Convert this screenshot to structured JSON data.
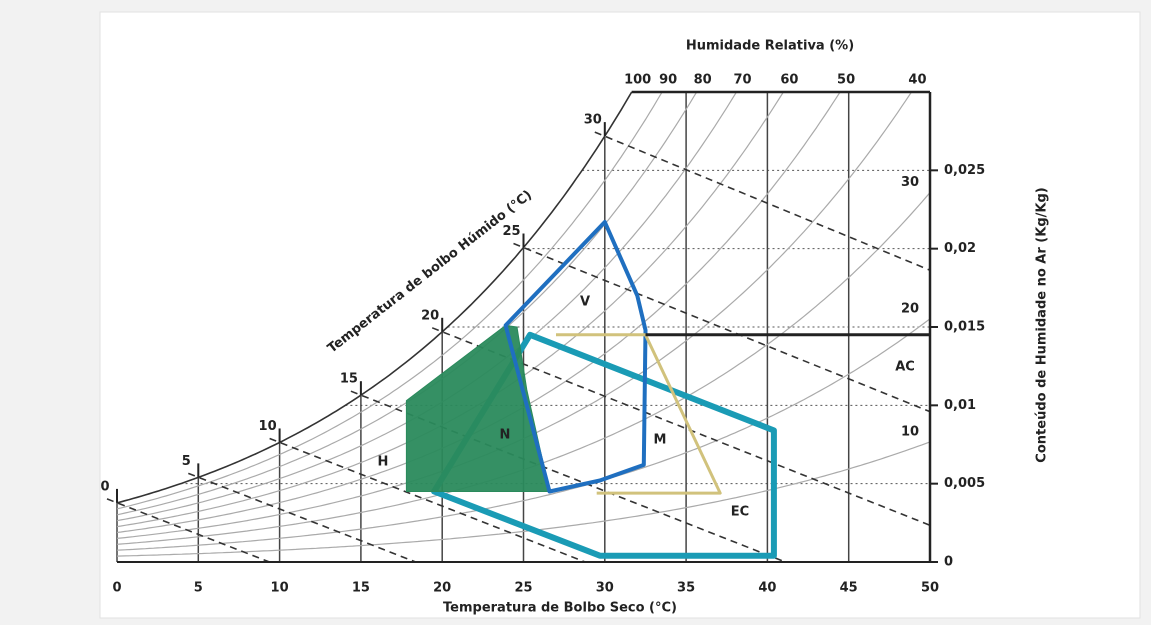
{
  "chart_data": {
    "type": "psychrometric",
    "title": "Humidade Relativa (%)",
    "x_label": "Temperatura de Bolbo Seco (°C)",
    "y2_label": "Conteúdo de Humidade no Ar (Kg/Kg)",
    "wet_bulb_label": "Temperatura de bolbo Húmido (°C)",
    "xlim": [
      0,
      50
    ],
    "xticks": [
      0,
      5,
      10,
      15,
      20,
      25,
      30,
      35,
      40,
      45,
      50
    ],
    "y2lim": [
      0,
      0.03
    ],
    "y2ticks": [
      0,
      {
        "value": 0.005,
        "label": "0,005"
      },
      {
        "value": 0.01,
        "label": "0,01"
      },
      {
        "value": 0.015,
        "label": "0,015"
      },
      {
        "value": 0.02,
        "label": "0,02"
      },
      {
        "value": 0.025,
        "label": "0,025"
      }
    ],
    "relative_humidity": [
      100,
      90,
      80,
      70,
      60,
      50,
      40,
      30,
      20,
      10
    ],
    "wet_bulb": [
      0,
      5,
      10,
      15,
      20,
      25,
      30
    ],
    "grid": true,
    "zones": [
      {
        "name": "EC",
        "color": "#1a9bb5",
        "points": [
          [
            25.4,
            0.0145
          ],
          [
            40.4,
            0.0084
          ],
          [
            40.4,
            0.0004
          ],
          [
            29.7,
            0.0004
          ],
          [
            19.5,
            0.0045
          ]
        ]
      },
      {
        "name": "N",
        "color": "#2a8a5c",
        "points": [
          [
            17.8,
            0.0103
          ],
          [
            23.9,
            0.0151
          ],
          [
            24.6,
            0.015
          ],
          [
            25.2,
            0.011
          ],
          [
            26.6,
            0.0045
          ],
          [
            17.8,
            0.0045
          ]
        ]
      },
      {
        "name": "V",
        "color": "#1f6fc0",
        "points": [
          [
            23.9,
            0.0151
          ],
          [
            30,
            0.0217
          ],
          [
            32,
            0.017
          ],
          [
            32.5,
            0.0148
          ],
          [
            32.4,
            0.0062
          ],
          [
            29.7,
            0.0052
          ],
          [
            26.6,
            0.0045
          ]
        ]
      },
      {
        "name": "M",
        "color": "#d1c27c",
        "points": [
          [
            27,
            0.0145
          ],
          [
            32.5,
            0.0145
          ],
          [
            37.1,
            0.0044
          ],
          [
            29.5,
            0.0044
          ]
        ]
      },
      {
        "name": "AC",
        "color": "#222222",
        "points": [
          [
            32.5,
            0.0145
          ],
          [
            50,
            0.0145
          ]
        ]
      },
      {
        "name": "H"
      }
    ]
  }
}
